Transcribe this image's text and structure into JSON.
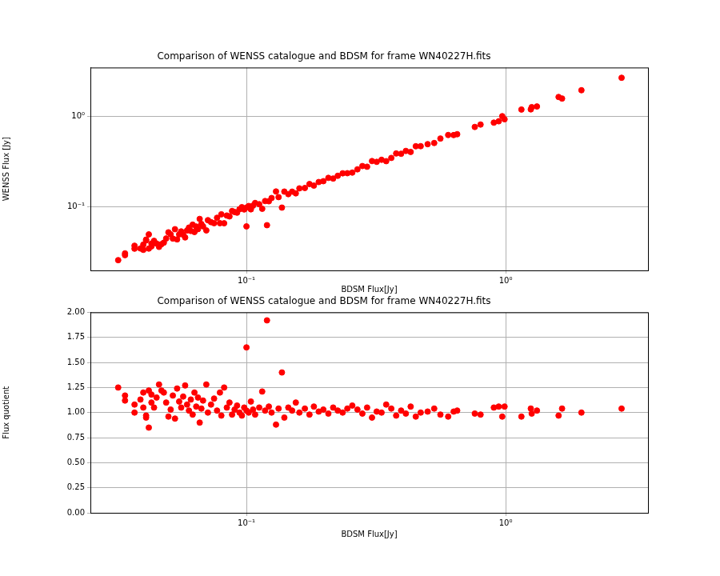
{
  "chart_data": [
    {
      "type": "scatter",
      "title": "Comparison of WENSS catalogue and BDSM for frame WN40227H.fits",
      "x_label": "BDSM Flux[Jy]",
      "y_label": "WENSS Flux [Jy]",
      "x": [
        0.032,
        0.034,
        0.034,
        0.037,
        0.037,
        0.039,
        0.04,
        0.04,
        0.041,
        0.041,
        0.042,
        0.042,
        0.043,
        0.043,
        0.044,
        0.045,
        0.046,
        0.047,
        0.048,
        0.049,
        0.05,
        0.051,
        0.052,
        0.053,
        0.054,
        0.055,
        0.056,
        0.057,
        0.058,
        0.059,
        0.06,
        0.061,
        0.062,
        0.063,
        0.064,
        0.065,
        0.066,
        0.067,
        0.068,
        0.07,
        0.071,
        0.073,
        0.075,
        0.077,
        0.079,
        0.08,
        0.082,
        0.084,
        0.086,
        0.088,
        0.09,
        0.092,
        0.094,
        0.096,
        0.098,
        0.1,
        0.1,
        0.102,
        0.104,
        0.106,
        0.108,
        0.112,
        0.115,
        0.118,
        0.12,
        0.122,
        0.125,
        0.13,
        0.133,
        0.137,
        0.14,
        0.145,
        0.15,
        0.155,
        0.16,
        0.168,
        0.175,
        0.182,
        0.19,
        0.198,
        0.207,
        0.216,
        0.225,
        0.235,
        0.245,
        0.256,
        0.268,
        0.28,
        0.292,
        0.305,
        0.318,
        0.332,
        0.346,
        0.362,
        0.378,
        0.395,
        0.412,
        0.43,
        0.45,
        0.47,
        0.5,
        0.53,
        0.56,
        0.6,
        0.63,
        0.65,
        0.76,
        0.8,
        0.9,
        0.94,
        0.97,
        0.99,
        1.15,
        1.25,
        1.26,
        1.32,
        1.6,
        1.65,
        1.96,
        2.8
      ],
      "values": [
        0.0256,
        0.0291,
        0.0304,
        0.037,
        0.0343,
        0.0345,
        0.0333,
        0.0381,
        0.0423,
        0.0432,
        0.0344,
        0.0494,
        0.0364,
        0.0391,
        0.0419,
        0.0391,
        0.0359,
        0.0385,
        0.04,
        0.0445,
        0.0521,
        0.0495,
        0.0444,
        0.0564,
        0.0435,
        0.0495,
        0.0533,
        0.0491,
        0.0457,
        0.0546,
        0.0588,
        0.054,
        0.0633,
        0.0525,
        0.0604,
        0.0565,
        0.0733,
        0.0644,
        0.0607,
        0.0547,
        0.071,
        0.0676,
        0.0658,
        0.0755,
        0.0658,
        0.0825,
        0.0656,
        0.08,
        0.0782,
        0.0898,
        0.0874,
        0.086,
        0.094,
        0.099,
        0.0933,
        0.0606,
        0.098,
        0.102,
        0.0937,
        0.1029,
        0.1102,
        0.1067,
        0.095,
        0.1157,
        0.0625,
        0.1151,
        0.125,
        0.1477,
        0.1279,
        0.0979,
        0.1474,
        0.1381,
        0.1471,
        0.1409,
        0.16,
        0.1615,
        0.1786,
        0.1717,
        0.1881,
        0.1922,
        0.2091,
        0.2057,
        0.2206,
        0.235,
        0.2356,
        0.2393,
        0.2602,
        0.2828,
        0.2781,
        0.3211,
        0.3149,
        0.332,
        0.3204,
        0.3481,
        0.3897,
        0.3873,
        0.4162,
        0.4057,
        0.4688,
        0.47,
        0.495,
        0.5096,
        0.5714,
        0.625,
        0.6238,
        0.6373,
        0.7677,
        0.8163,
        0.8571,
        0.8868,
        1.0104,
        0.934,
        1.1979,
        1.2019,
        1.2727,
        1.2941,
        1.6495,
        1.5865,
        1.96,
        2.6923
      ],
      "color": "#ff0000",
      "marker": "circle",
      "log": true,
      "grid": true,
      "xlim": [
        0.025,
        3.54
      ],
      "ylim": [
        0.0197,
        3.5
      ],
      "xticks": [
        {
          "value": 0.1,
          "label": "10⁻¹"
        },
        {
          "value": 1,
          "label": "10⁰"
        }
      ],
      "yticks": [
        {
          "value": 0.1,
          "label": "10⁻¹"
        },
        {
          "value": 1,
          "label": "10⁰"
        }
      ]
    },
    {
      "type": "scatter",
      "title": "Comparison of WENSS catalogue and BDSM for frame WN40227H.fits",
      "x_label": "BDSM Flux[Jy]",
      "y_label": "Flux quotient",
      "x": [
        0.032,
        0.034,
        0.034,
        0.037,
        0.037,
        0.039,
        0.04,
        0.04,
        0.041,
        0.041,
        0.042,
        0.042,
        0.043,
        0.043,
        0.044,
        0.045,
        0.046,
        0.047,
        0.048,
        0.049,
        0.05,
        0.051,
        0.052,
        0.053,
        0.054,
        0.055,
        0.056,
        0.057,
        0.058,
        0.059,
        0.06,
        0.061,
        0.062,
        0.063,
        0.064,
        0.065,
        0.066,
        0.067,
        0.068,
        0.07,
        0.071,
        0.073,
        0.075,
        0.077,
        0.079,
        0.08,
        0.082,
        0.084,
        0.086,
        0.088,
        0.09,
        0.092,
        0.094,
        0.096,
        0.098,
        0.1,
        0.1,
        0.102,
        0.104,
        0.106,
        0.108,
        0.112,
        0.115,
        0.118,
        0.12,
        0.122,
        0.125,
        0.13,
        0.133,
        0.137,
        0.14,
        0.145,
        0.15,
        0.155,
        0.16,
        0.168,
        0.175,
        0.182,
        0.19,
        0.198,
        0.207,
        0.216,
        0.225,
        0.235,
        0.245,
        0.256,
        0.268,
        0.28,
        0.292,
        0.305,
        0.318,
        0.332,
        0.346,
        0.362,
        0.378,
        0.395,
        0.412,
        0.43,
        0.45,
        0.47,
        0.5,
        0.53,
        0.56,
        0.6,
        0.63,
        0.65,
        0.76,
        0.8,
        0.9,
        0.94,
        0.97,
        0.99,
        1.15,
        1.25,
        1.26,
        1.32,
        1.6,
        1.65,
        1.96,
        2.8
      ],
      "values": [
        1.25,
        1.17,
        1.12,
        1.0,
        1.08,
        1.13,
        1.2,
        1.05,
        0.97,
        0.95,
        1.22,
        0.85,
        1.18,
        1.1,
        1.05,
        1.15,
        1.28,
        1.22,
        1.2,
        1.1,
        0.96,
        1.03,
        1.17,
        0.94,
        1.24,
        1.11,
        1.05,
        1.16,
        1.27,
        1.08,
        1.02,
        1.13,
        0.98,
        1.2,
        1.06,
        1.15,
        0.9,
        1.04,
        1.12,
        1.28,
        1.0,
        1.08,
        1.14,
        1.02,
        1.2,
        0.97,
        1.25,
        1.05,
        1.1,
        0.98,
        1.03,
        1.07,
        1.0,
        0.97,
        1.05,
        1.65,
        1.02,
        1.0,
        1.11,
        1.03,
        0.98,
        1.05,
        1.21,
        1.02,
        1.92,
        1.06,
        1.0,
        0.88,
        1.04,
        1.4,
        0.95,
        1.05,
        1.02,
        1.1,
        1.0,
        1.04,
        0.98,
        1.06,
        1.01,
        1.03,
        0.99,
        1.05,
        1.02,
        1.0,
        1.04,
        1.07,
        1.03,
        0.99,
        1.05,
        0.95,
        1.01,
        1.0,
        1.08,
        1.04,
        0.97,
        1.02,
        0.99,
        1.06,
        0.96,
        1.0,
        1.01,
        1.04,
        0.98,
        0.96,
        1.01,
        1.02,
        0.99,
        0.98,
        1.05,
        1.06,
        0.96,
        1.06,
        0.96,
        1.04,
        0.99,
        1.02,
        0.97,
        1.04,
        1.0,
        1.04
      ],
      "color": "#ff0000",
      "marker": "circle",
      "log": "x",
      "grid": true,
      "xlim": [
        0.025,
        3.54
      ],
      "ylim": [
        0,
        2
      ],
      "xticks": [
        {
          "value": 0.1,
          "label": "10⁻¹"
        },
        {
          "value": 1,
          "label": "10⁰"
        }
      ],
      "yticks": [
        {
          "value": 0,
          "label": "0.00"
        },
        {
          "value": 0.25,
          "label": "0.25"
        },
        {
          "value": 0.5,
          "label": "0.50"
        },
        {
          "value": 0.75,
          "label": "0.75"
        },
        {
          "value": 1,
          "label": "1.00"
        },
        {
          "value": 1.25,
          "label": "1.25"
        },
        {
          "value": 1.5,
          "label": "1.50"
        },
        {
          "value": 1.75,
          "label": "1.75"
        },
        {
          "value": 2,
          "label": "2.00"
        }
      ]
    }
  ]
}
